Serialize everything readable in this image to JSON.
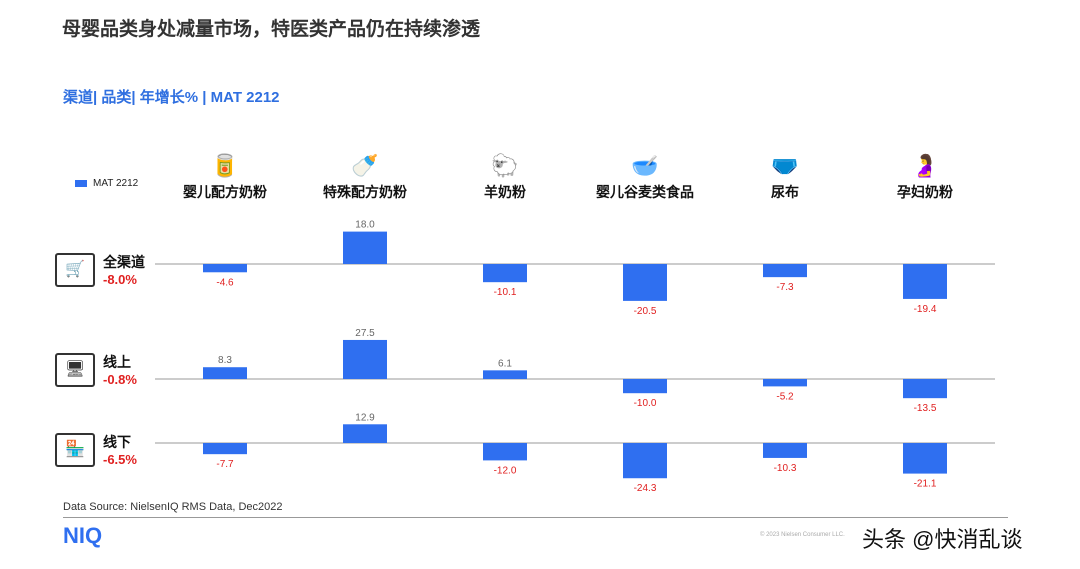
{
  "header": {
    "title": "母婴品类身处减量市场，特医类产品仍在持续渗透",
    "subtitle": "渠道| 品类| 年增长% | MAT 2212"
  },
  "footer": {
    "source": "Data Source: NielsenIQ RMS Data, Dec2022",
    "logo": "NIQ",
    "copyright": "© 2023 Nielsen Consumer LLC.",
    "watermark": "头条 @快消乱谈"
  },
  "colors": {
    "bar": "#2f6ff0",
    "positive_label": "#666666",
    "negative_label": "#e02020",
    "channel_total": "#e02020"
  },
  "chart_data": {
    "type": "bar",
    "legend": {
      "entries": [
        "MAT 2212"
      ],
      "placement": "left"
    },
    "categories": [
      "婴儿配方奶粉",
      "特殊配方奶粉",
      "羊奶粉",
      "婴儿谷麦类食品",
      "尿布",
      "孕妇奶粉"
    ],
    "category_icons": [
      "formula-can-icon",
      "bottle-icon",
      "sheep-icon",
      "cereal-bowl-icon",
      "diaper-icon",
      "pregnant-icon"
    ],
    "series": [
      {
        "name": "全渠道",
        "total": "-8.0%",
        "icon": "shopping-cart-icon",
        "values": [
          -4.6,
          18.0,
          -10.1,
          -20.5,
          -7.3,
          -19.4
        ]
      },
      {
        "name": "线上",
        "total": "-0.8%",
        "icon": "online-shop-icon",
        "values": [
          8.3,
          27.5,
          6.1,
          -10.0,
          -5.2,
          -13.5
        ]
      },
      {
        "name": "线下",
        "total": "-6.5%",
        "icon": "store-icon",
        "values": [
          -7.7,
          12.9,
          -12.0,
          -24.3,
          -10.3,
          -21.1
        ]
      }
    ]
  }
}
